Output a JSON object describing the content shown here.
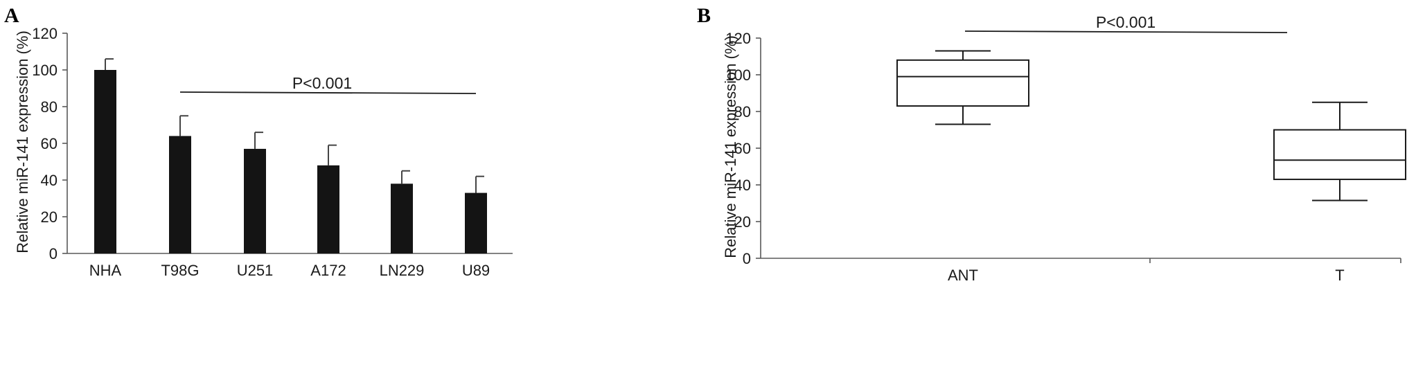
{
  "panels": [
    {
      "letter": "A",
      "ylabel": "Relative miR-141 expression (%)",
      "significance": "P<0.001"
    },
    {
      "letter": "B",
      "ylabel": "Relative miR-141 expression (%)",
      "significance": "P<0.001"
    }
  ],
  "chart_data": [
    {
      "type": "bar",
      "title": "",
      "xlabel": "",
      "ylabel": "Relative miR-141 expression (%)",
      "ylim": [
        0,
        120
      ],
      "yticks": [
        0,
        20,
        40,
        60,
        80,
        100,
        120
      ],
      "grid": false,
      "categories": [
        "NHA",
        "T98G",
        "U251",
        "A172",
        "LN229",
        "U89"
      ],
      "values": [
        100,
        64,
        57,
        48,
        38,
        33
      ],
      "errors": [
        6,
        11,
        9,
        11,
        7,
        9
      ],
      "annotations": [
        {
          "text": "P<0.001",
          "from": "T98G",
          "to": "U89"
        }
      ]
    },
    {
      "type": "box",
      "title": "",
      "xlabel": "",
      "ylabel": "Relative miR-141 expression (%)",
      "ylim": [
        0,
        120
      ],
      "yticks": [
        0,
        20,
        40,
        60,
        80,
        100,
        120
      ],
      "grid": false,
      "categories": [
        "ANT",
        "T"
      ],
      "boxes": [
        {
          "min": 73,
          "q1": 83,
          "median": 99,
          "q3": 108,
          "max": 113
        },
        {
          "min": 31.5,
          "q1": 43,
          "median": 53.5,
          "q3": 70,
          "max": 85
        }
      ],
      "annotations": [
        {
          "text": "P<0.001",
          "from": "ANT",
          "to": "T"
        }
      ]
    }
  ]
}
